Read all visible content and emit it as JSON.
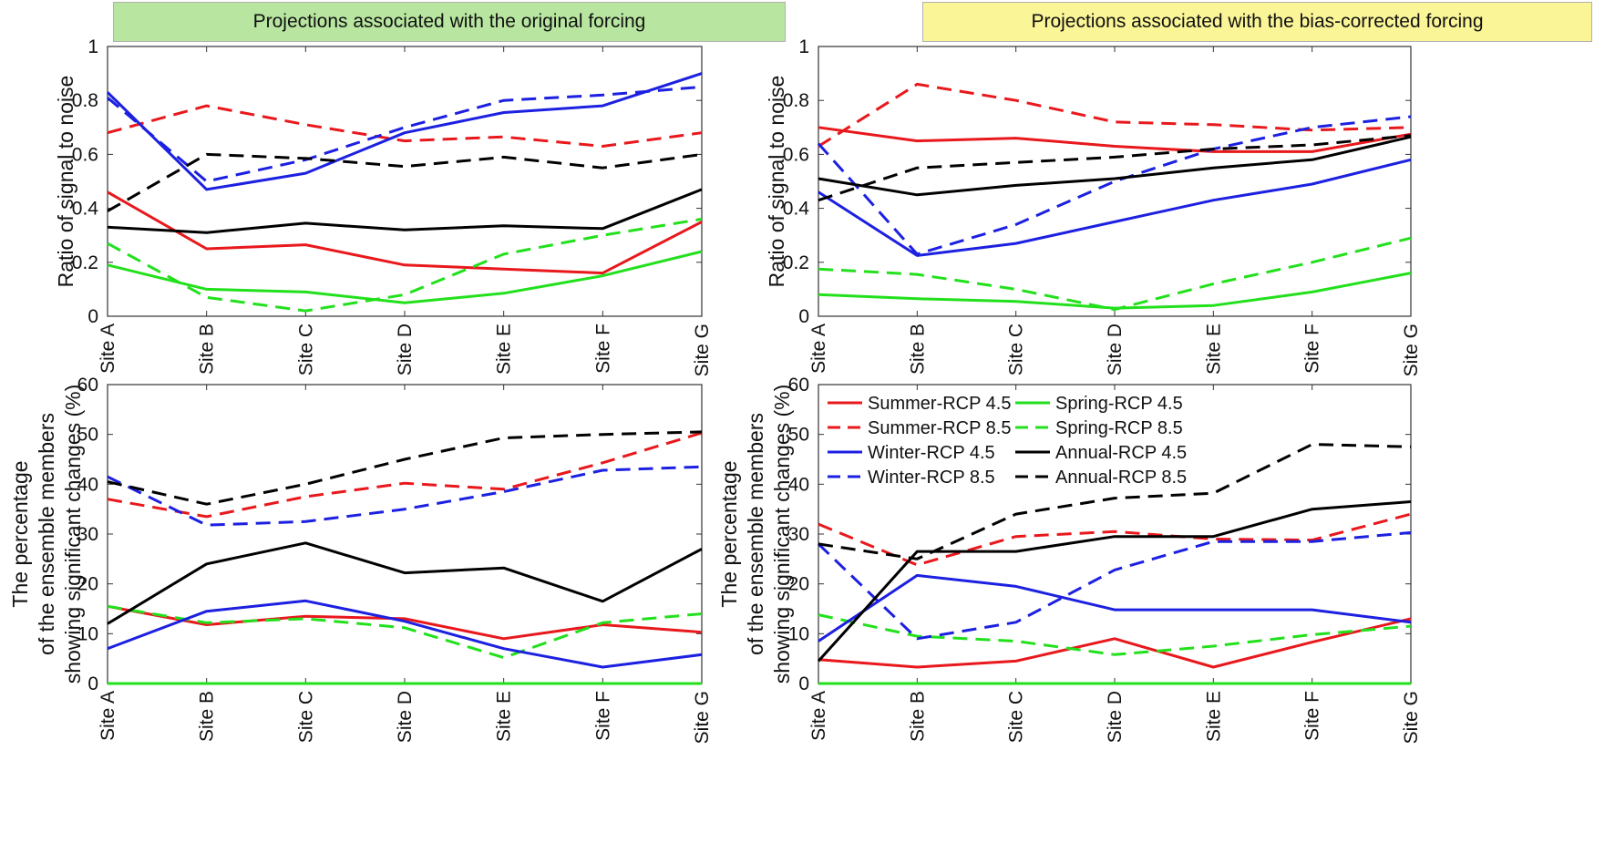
{
  "banners": {
    "left": "Projections associated with the original forcing",
    "right": "Projections associated with the bias-corrected forcing"
  },
  "colors": {
    "summer": "#e8181c",
    "spring": "#22e01c",
    "winter": "#1c20e0",
    "annual": "#000000"
  },
  "legend": [
    {
      "label": "Summer-RCP 4.5",
      "color": "#e8181c",
      "dash": false
    },
    {
      "label": "Spring-RCP 4.5",
      "color": "#22e01c",
      "dash": false
    },
    {
      "label": "Summer-RCP 8.5",
      "color": "#e8181c",
      "dash": true
    },
    {
      "label": "Spring-RCP 8.5",
      "color": "#22e01c",
      "dash": true
    },
    {
      "label": "Winter-RCP 4.5",
      "color": "#1c20e0",
      "dash": false
    },
    {
      "label": "Annual-RCP 4.5",
      "color": "#000000",
      "dash": false
    },
    {
      "label": "Winter-RCP 8.5",
      "color": "#1c20e0",
      "dash": true
    },
    {
      "label": "Annual-RCP 8.5",
      "color": "#000000",
      "dash": true
    }
  ],
  "chart_data": [
    {
      "id": "top-left",
      "type": "line",
      "categories": [
        "Site A",
        "Site B",
        "Site C",
        "Site D",
        "Site E",
        "Site F",
        "Site G"
      ],
      "ylabel": [
        "Ratio of signal to noise"
      ],
      "ylim": [
        0,
        1
      ],
      "yticks": [
        0,
        0.2,
        0.4,
        0.6,
        0.8,
        1
      ],
      "ytick_labels": [
        "0",
        "0.2",
        "0.4",
        "0.6",
        "0.8",
        "1"
      ],
      "series": [
        {
          "name": "Summer-RCP 4.5",
          "color": "#e8181c",
          "dash": false,
          "values": [
            0.46,
            0.25,
            0.265,
            0.19,
            0.175,
            0.16,
            0.35
          ]
        },
        {
          "name": "Summer-RCP 8.5",
          "color": "#e8181c",
          "dash": true,
          "values": [
            0.68,
            0.78,
            0.71,
            0.65,
            0.665,
            0.63,
            0.68
          ]
        },
        {
          "name": "Spring-RCP 4.5",
          "color": "#22e01c",
          "dash": false,
          "values": [
            0.19,
            0.1,
            0.09,
            0.05,
            0.085,
            0.15,
            0.24
          ]
        },
        {
          "name": "Spring-RCP 8.5",
          "color": "#22e01c",
          "dash": true,
          "values": [
            0.27,
            0.07,
            0.02,
            0.08,
            0.23,
            0.3,
            0.36
          ]
        },
        {
          "name": "Winter-RCP 4.5",
          "color": "#1c20e0",
          "dash": false,
          "values": [
            0.83,
            0.47,
            0.53,
            0.68,
            0.755,
            0.78,
            0.9
          ]
        },
        {
          "name": "Winter-RCP 8.5",
          "color": "#1c20e0",
          "dash": true,
          "values": [
            0.81,
            0.5,
            0.58,
            0.7,
            0.8,
            0.82,
            0.85
          ]
        },
        {
          "name": "Annual-RCP 4.5",
          "color": "#000000",
          "dash": false,
          "values": [
            0.33,
            0.31,
            0.345,
            0.32,
            0.335,
            0.325,
            0.47
          ]
        },
        {
          "name": "Annual-RCP 8.5",
          "color": "#000000",
          "dash": true,
          "values": [
            0.39,
            0.6,
            0.585,
            0.555,
            0.59,
            0.55,
            0.6
          ]
        }
      ]
    },
    {
      "id": "top-right",
      "type": "line",
      "categories": [
        "Site A",
        "Site B",
        "Site C",
        "Site D",
        "Site E",
        "Site F",
        "Site G"
      ],
      "ylabel": [
        "Ratio of signal to noise"
      ],
      "ylim": [
        0,
        1
      ],
      "yticks": [
        0,
        0.2,
        0.4,
        0.6,
        0.8,
        1
      ],
      "ytick_labels": [
        "0",
        "0.2",
        "0.4",
        "0.6",
        "0.8",
        "1"
      ],
      "series": [
        {
          "name": "Summer-RCP 4.5",
          "color": "#e8181c",
          "dash": false,
          "values": [
            0.7,
            0.65,
            0.66,
            0.63,
            0.61,
            0.61,
            0.675
          ]
        },
        {
          "name": "Summer-RCP 8.5",
          "color": "#e8181c",
          "dash": true,
          "values": [
            0.63,
            0.86,
            0.8,
            0.72,
            0.71,
            0.69,
            0.7
          ]
        },
        {
          "name": "Spring-RCP 4.5",
          "color": "#22e01c",
          "dash": false,
          "values": [
            0.08,
            0.065,
            0.055,
            0.03,
            0.04,
            0.09,
            0.16
          ]
        },
        {
          "name": "Spring-RCP 8.5",
          "color": "#22e01c",
          "dash": true,
          "values": [
            0.175,
            0.155,
            0.1,
            0.025,
            0.12,
            0.2,
            0.29
          ]
        },
        {
          "name": "Winter-RCP 4.5",
          "color": "#1c20e0",
          "dash": false,
          "values": [
            0.46,
            0.225,
            0.27,
            0.35,
            0.43,
            0.49,
            0.58
          ]
        },
        {
          "name": "Winter-RCP 8.5",
          "color": "#1c20e0",
          "dash": true,
          "values": [
            0.64,
            0.23,
            0.34,
            0.5,
            0.62,
            0.7,
            0.74
          ]
        },
        {
          "name": "Annual-RCP 4.5",
          "color": "#000000",
          "dash": false,
          "values": [
            0.51,
            0.45,
            0.485,
            0.51,
            0.55,
            0.58,
            0.665
          ]
        },
        {
          "name": "Annual-RCP 8.5",
          "color": "#000000",
          "dash": true,
          "values": [
            0.43,
            0.55,
            0.57,
            0.59,
            0.62,
            0.635,
            0.67
          ]
        }
      ]
    },
    {
      "id": "bottom-left",
      "type": "line",
      "categories": [
        "Site A",
        "Site B",
        "Site C",
        "Site D",
        "Site E",
        "Site F",
        "Site G"
      ],
      "ylabel": [
        "The percentage",
        "of the ensemble members",
        "showing significant changes (%)"
      ],
      "ylim": [
        0,
        60
      ],
      "yticks": [
        0,
        10,
        20,
        30,
        40,
        50,
        60
      ],
      "ytick_labels": [
        "0",
        "10",
        "20",
        "30",
        "40",
        "50",
        "60"
      ],
      "series": [
        {
          "name": "Summer-RCP 4.5",
          "color": "#e8181c",
          "dash": false,
          "values": [
            15.5,
            11.8,
            13.5,
            13.0,
            9.0,
            11.8,
            10.3
          ]
        },
        {
          "name": "Summer-RCP 8.5",
          "color": "#e8181c",
          "dash": true,
          "values": [
            37.0,
            33.5,
            37.5,
            40.2,
            39.0,
            44.3,
            50.3
          ]
        },
        {
          "name": "Spring-RCP 4.5",
          "color": "#22e01c",
          "dash": false,
          "values": [
            0,
            0,
            0,
            0,
            0,
            0,
            0
          ]
        },
        {
          "name": "Spring-RCP 8.5",
          "color": "#22e01c",
          "dash": true,
          "values": [
            15.5,
            12.2,
            13.0,
            11.2,
            5.2,
            12.2,
            14.0
          ]
        },
        {
          "name": "Winter-RCP 4.5",
          "color": "#1c20e0",
          "dash": false,
          "values": [
            7.0,
            14.5,
            16.6,
            12.5,
            7.0,
            3.3,
            5.8
          ]
        },
        {
          "name": "Winter-RCP 8.5",
          "color": "#1c20e0",
          "dash": true,
          "values": [
            41.5,
            31.8,
            32.5,
            35.0,
            38.5,
            42.8,
            43.5
          ]
        },
        {
          "name": "Annual-RCP 4.5",
          "color": "#000000",
          "dash": false,
          "values": [
            12.0,
            24.0,
            28.2,
            22.2,
            23.2,
            16.5,
            27.0
          ]
        },
        {
          "name": "Annual-RCP 8.5",
          "color": "#000000",
          "dash": true,
          "values": [
            40.5,
            36.0,
            40.0,
            45.0,
            49.3,
            50.0,
            50.5
          ]
        }
      ]
    },
    {
      "id": "bottom-right",
      "type": "line",
      "categories": [
        "Site A",
        "Site B",
        "Site C",
        "Site D",
        "Site E",
        "Site F",
        "Site G"
      ],
      "ylabel": [
        "The percentage",
        "of the ensemble members",
        "showing significant changes (%)"
      ],
      "ylim": [
        0,
        60
      ],
      "yticks": [
        0,
        10,
        20,
        30,
        40,
        50,
        60
      ],
      "ytick_labels": [
        "0",
        "10",
        "20",
        "30",
        "40",
        "50",
        "60"
      ],
      "legend_position": "top-left",
      "series": [
        {
          "name": "Summer-RCP 4.5",
          "color": "#e8181c",
          "dash": false,
          "values": [
            4.8,
            3.3,
            4.5,
            9.0,
            3.3,
            8.3,
            13.0
          ]
        },
        {
          "name": "Summer-RCP 8.5",
          "color": "#e8181c",
          "dash": true,
          "values": [
            32.0,
            23.8,
            29.5,
            30.5,
            29.0,
            28.8,
            34.0
          ]
        },
        {
          "name": "Spring-RCP 4.5",
          "color": "#22e01c",
          "dash": false,
          "values": [
            0,
            0,
            0,
            0,
            0,
            0,
            0
          ]
        },
        {
          "name": "Spring-RCP 8.5",
          "color": "#22e01c",
          "dash": true,
          "values": [
            13.8,
            9.5,
            8.5,
            5.8,
            7.5,
            9.8,
            11.5
          ]
        },
        {
          "name": "Winter-RCP 4.5",
          "color": "#1c20e0",
          "dash": false,
          "values": [
            8.5,
            21.7,
            19.5,
            14.8,
            14.8,
            14.8,
            12.3
          ]
        },
        {
          "name": "Winter-RCP 8.5",
          "color": "#1c20e0",
          "dash": true,
          "values": [
            28.0,
            9.0,
            12.3,
            22.8,
            28.5,
            28.5,
            30.3
          ]
        },
        {
          "name": "Annual-RCP 4.5",
          "color": "#000000",
          "dash": false,
          "values": [
            4.5,
            26.5,
            26.5,
            29.5,
            29.5,
            35.0,
            36.5
          ]
        },
        {
          "name": "Annual-RCP 8.5",
          "color": "#000000",
          "dash": true,
          "values": [
            28.0,
            25.0,
            34.0,
            37.2,
            38.2,
            48.0,
            47.5
          ]
        }
      ]
    }
  ]
}
